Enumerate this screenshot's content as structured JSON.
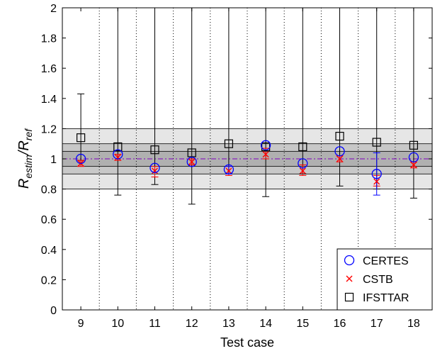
{
  "chart_data": {
    "type": "scatter",
    "xlabel": "Test case",
    "ylabel": {
      "main": "R",
      "sub1": "estim",
      "sep": "/",
      "main2": "R",
      "sub2": "ref"
    },
    "categories": [
      "9",
      "10",
      "11",
      "12",
      "13",
      "14",
      "15",
      "16",
      "17",
      "18"
    ],
    "x": [
      9,
      10,
      11,
      12,
      13,
      14,
      15,
      16,
      17,
      18
    ],
    "xlim": [
      8.5,
      18.5
    ],
    "ylim": [
      0,
      2
    ],
    "yticks": [
      0,
      0.2,
      0.4,
      0.6,
      0.8,
      1,
      1.2,
      1.4,
      1.6,
      1.8,
      2
    ],
    "ytick_labels": [
      "0",
      "0.2",
      "0.4",
      "0.6",
      "0.8",
      "1",
      "1.2",
      "1.4",
      "1.6",
      "1.8",
      "2"
    ],
    "reference_line": 1.0,
    "bands": [
      {
        "range": [
          0.8,
          1.2
        ],
        "color": "#e6e6e6"
      },
      {
        "range": [
          0.9,
          1.1
        ],
        "color": "#c8c8c8"
      },
      {
        "range": [
          0.95,
          1.05
        ],
        "color": "#b0b0b0"
      }
    ],
    "grid": "dotted vertical separators between test cases",
    "series": [
      {
        "name": "CERTES",
        "marker": "circle",
        "color": "#0000ff",
        "values": [
          1.0,
          1.03,
          0.94,
          0.98,
          0.93,
          1.09,
          0.97,
          1.05,
          0.9,
          1.01
        ],
        "err_low": [
          null,
          null,
          null,
          null,
          0.9,
          null,
          null,
          null,
          0.76,
          null
        ],
        "err_high": [
          null,
          null,
          null,
          null,
          0.95,
          null,
          null,
          null,
          1.04,
          null
        ]
      },
      {
        "name": "CSTB",
        "marker": "x",
        "color": "#ff0000",
        "values": [
          0.97,
          1.01,
          0.92,
          0.98,
          0.92,
          1.03,
          0.92,
          1.0,
          0.85,
          0.96
        ],
        "err_low": [
          0.95,
          0.99,
          0.88,
          0.96,
          0.89,
          1.0,
          0.89,
          0.98,
          0.82,
          0.94
        ],
        "err_high": [
          0.99,
          1.03,
          0.95,
          1.0,
          0.95,
          1.07,
          0.96,
          1.02,
          0.89,
          0.98
        ]
      },
      {
        "name": "IFSTTAR",
        "marker": "square",
        "color": "#000000",
        "values": [
          1.14,
          1.08,
          1.06,
          1.04,
          1.1,
          1.08,
          1.08,
          1.15,
          1.11,
          1.09
        ],
        "err_low": [
          0.99,
          0.76,
          0.83,
          0.7,
          0.9,
          0.75,
          0.9,
          0.82,
          0.8,
          0.74
        ],
        "err_high": [
          1.43,
          2.0,
          2.0,
          2.0,
          2.0,
          2.0,
          2.0,
          2.0,
          2.0,
          2.0
        ]
      }
    ],
    "legend": {
      "position": "bottom-right",
      "entries": [
        "CERTES",
        "CSTB",
        "IFSTTAR"
      ]
    }
  }
}
